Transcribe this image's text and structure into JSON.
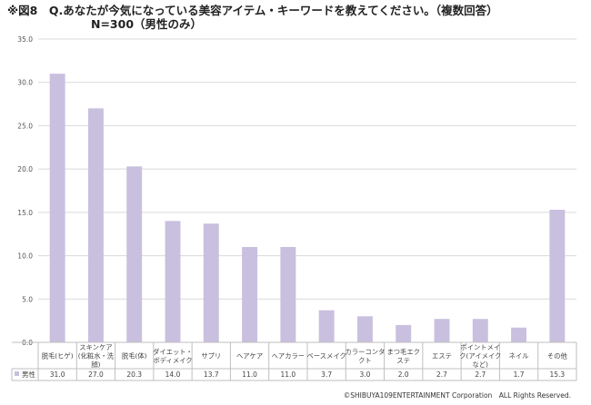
{
  "header": {
    "title_line1": "※図8　Q.あなたが今気になっている美容アイテム・キーワードを教えてください。（複数回答）",
    "title_line2": "N=300（男性のみ）"
  },
  "chart_data": {
    "type": "bar",
    "title": "",
    "xlabel": "",
    "ylabel": "",
    "ylim": [
      0,
      35
    ],
    "yticks": [
      "0.0",
      "5.0",
      "10.0",
      "15.0",
      "20.0",
      "25.0",
      "30.0",
      "35.0"
    ],
    "categories": [
      [
        "脱毛(ヒゲ)"
      ],
      [
        "スキンケア",
        "(化粧水・洗",
        "顔)"
      ],
      [
        "脱毛(体)"
      ],
      [
        "ダイエット・",
        "ボディメイク"
      ],
      [
        "サプリ"
      ],
      [
        "ヘアケア"
      ],
      [
        "ヘアカラー"
      ],
      [
        "ベースメイク"
      ],
      [
        "カラーコンタ",
        "クト"
      ],
      [
        "まつ毛エク",
        "ステ"
      ],
      [
        "エステ"
      ],
      [
        "ポイントメイ",
        "ク(アイメイク",
        "など)"
      ],
      [
        "ネイル"
      ],
      [
        "その他"
      ]
    ],
    "series": [
      {
        "name": "男性",
        "values": [
          31.0,
          27.0,
          20.3,
          14.0,
          13.7,
          11.0,
          11.0,
          3.7,
          3.0,
          2.0,
          2.7,
          2.7,
          1.7,
          15.3
        ],
        "labels": [
          "31.0",
          "27.0",
          "20.3",
          "14.0",
          "13.7",
          "11.0",
          "11.0",
          "3.7",
          "3.0",
          "2.0",
          "2.7",
          "2.7",
          "1.7",
          "15.3"
        ],
        "color": "#c9bfde"
      }
    ],
    "grid": true,
    "legend": "data-table"
  },
  "footer": {
    "copyright": "©SHIBUYA109ENTERTAINMENT Corporation　ALL Rights Reserved."
  }
}
